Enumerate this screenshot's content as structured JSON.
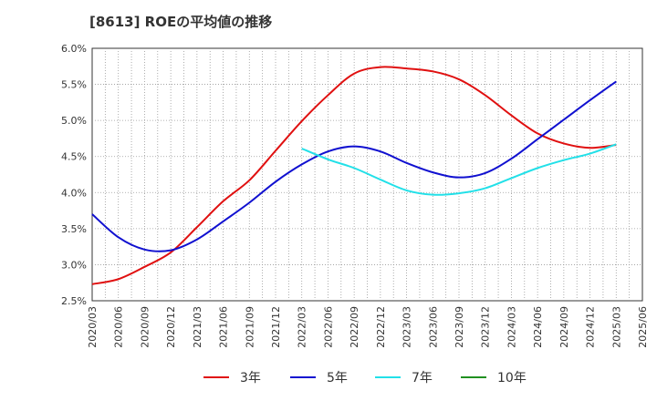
{
  "chart_data": {
    "type": "line",
    "title": "[8613]  ROEの平均値の推移",
    "xlabel": "",
    "ylabel": "",
    "ylim": [
      2.5,
      6.0
    ],
    "yticks": [
      2.5,
      3.0,
      3.5,
      4.0,
      4.5,
      5.0,
      5.5,
      6.0
    ],
    "ytick_labels": [
      "2.5%",
      "3.0%",
      "3.5%",
      "4.0%",
      "4.5%",
      "5.0%",
      "5.5%",
      "6.0%"
    ],
    "grid": true,
    "legend_position": "bottom",
    "categories": [
      "2020/03",
      "2020/06",
      "2020/09",
      "2020/12",
      "2021/03",
      "2021/06",
      "2021/09",
      "2021/12",
      "2022/03",
      "2022/06",
      "2022/09",
      "2022/12",
      "2023/03",
      "2023/06",
      "2023/09",
      "2023/12",
      "2024/03",
      "2024/06",
      "2024/09",
      "2024/12",
      "2025/03",
      "2025/06"
    ],
    "series": [
      {
        "name": "3年",
        "color": "#e01010",
        "values": [
          2.73,
          2.8,
          2.97,
          3.17,
          3.52,
          3.88,
          4.17,
          4.58,
          4.99,
          5.35,
          5.65,
          5.74,
          5.72,
          5.68,
          5.57,
          5.35,
          5.07,
          4.82,
          4.68,
          4.62,
          4.66,
          null
        ]
      },
      {
        "name": "5年",
        "color": "#1010d0",
        "values": [
          3.7,
          3.38,
          3.21,
          3.2,
          3.35,
          3.6,
          3.86,
          4.15,
          4.39,
          4.57,
          4.64,
          4.57,
          4.41,
          4.28,
          4.21,
          4.27,
          4.47,
          4.74,
          5.01,
          5.28,
          5.54,
          null
        ]
      },
      {
        "name": "7年",
        "color": "#22e0e8",
        "values": [
          null,
          null,
          null,
          null,
          null,
          null,
          null,
          null,
          4.61,
          4.46,
          4.34,
          4.18,
          4.03,
          3.97,
          3.99,
          4.06,
          4.2,
          4.34,
          4.45,
          4.54,
          4.67,
          null
        ]
      },
      {
        "name": "10年",
        "color": "#209020",
        "values": [
          null,
          null,
          null,
          null,
          null,
          null,
          null,
          null,
          null,
          null,
          null,
          null,
          null,
          null,
          null,
          null,
          null,
          null,
          null,
          null,
          null,
          null
        ]
      }
    ]
  }
}
